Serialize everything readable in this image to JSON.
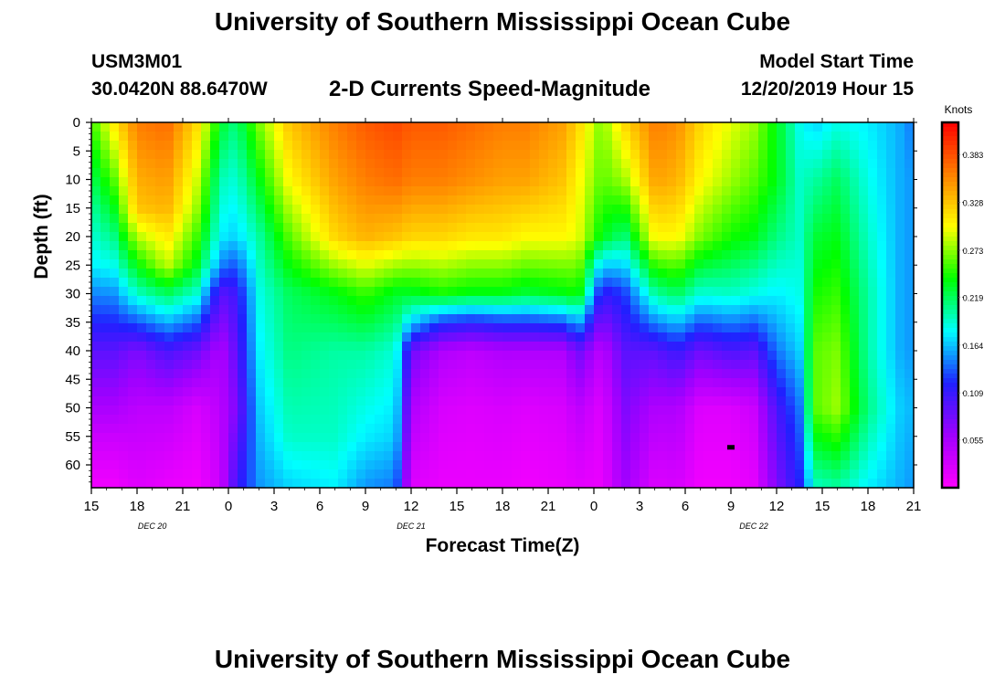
{
  "header": {
    "title": "University of Southern Mississippi Ocean Cube",
    "station": "USM3M01",
    "coordinates": "30.0420N 88.6470W",
    "subtitle": "2-D Currents Speed-Magnitude",
    "model_start_label": "Model Start Time",
    "model_start_value": "12/20/2019 Hour 15"
  },
  "footer": {
    "title": "University of Southern Mississippi Ocean Cube"
  },
  "chart_data": {
    "type": "heatmap",
    "title": "2-D Currents Speed-Magnitude",
    "xlabel": "Forecast Time(Z)",
    "ylabel": "Depth (ft)",
    "x_unit": "hours since 12/20/2019 15Z",
    "x_range": [
      0,
      54
    ],
    "x_tick_values": [
      0,
      3,
      6,
      9,
      12,
      15,
      18,
      21,
      24,
      27,
      30,
      33,
      36,
      39,
      42,
      45,
      48,
      51,
      54
    ],
    "x_tick_labels": [
      "15",
      "18",
      "21",
      "0",
      "3",
      "6",
      "9",
      "12",
      "15",
      "18",
      "21",
      "0",
      "3",
      "6",
      "9",
      "12",
      "15",
      "18",
      "21"
    ],
    "date_labels": [
      {
        "label": "DEC  20",
        "at_hour": 4
      },
      {
        "label": "DEC  21",
        "at_hour": 21
      },
      {
        "label": "DEC  22",
        "at_hour": 43.5
      }
    ],
    "y_range": [
      0,
      64
    ],
    "y_ticks": [
      0,
      5,
      10,
      15,
      20,
      25,
      30,
      35,
      40,
      45,
      50,
      55,
      60
    ],
    "colorbar": {
      "label": "Knots",
      "ticks": [
        0.055,
        0.109,
        0.164,
        0.219,
        0.273,
        0.328,
        0.383
      ],
      "range": [
        0.0,
        0.42
      ],
      "colors": [
        "#ff00ff",
        "#a000ff",
        "#2020ff",
        "#00ffff",
        "#00ff00",
        "#ffff00",
        "#ff8000",
        "#ff0000"
      ]
    },
    "value_scale": "0-1 fraction of colorbar range",
    "time_hours": [
      0,
      1.5,
      3,
      5,
      7,
      8.5,
      9.5,
      11,
      13,
      16,
      18,
      20,
      21,
      23,
      25,
      27,
      28.5,
      31,
      32,
      33.5,
      35,
      37,
      38.5,
      40,
      42,
      43.5,
      45,
      46.5,
      47.5,
      49,
      51,
      53,
      54
    ],
    "speed_profiles": [
      {
        "h": 0,
        "z": [
          0,
          15,
          25,
          30,
          40,
          55,
          64
        ],
        "v": [
          0.6,
          0.48,
          0.42,
          0.35,
          0.22,
          0.08,
          0.02
        ]
      },
      {
        "h": 1.5,
        "z": [
          0,
          15,
          25,
          30,
          40,
          55,
          64
        ],
        "v": [
          0.74,
          0.56,
          0.44,
          0.36,
          0.22,
          0.08,
          0.02
        ]
      },
      {
        "h": 3,
        "z": [
          0,
          15,
          30,
          40,
          50,
          64
        ],
        "v": [
          0.86,
          0.78,
          0.46,
          0.18,
          0.1,
          0.05
        ]
      },
      {
        "h": 5,
        "z": [
          0,
          15,
          25,
          30,
          40,
          50,
          64
        ],
        "v": [
          0.88,
          0.8,
          0.68,
          0.52,
          0.24,
          0.1,
          0.03
        ]
      },
      {
        "h": 7,
        "z": [
          0,
          15,
          25,
          30,
          40,
          50,
          64
        ],
        "v": [
          0.75,
          0.65,
          0.55,
          0.45,
          0.2,
          0.06,
          0.02
        ]
      },
      {
        "h": 8.5,
        "z": [
          0,
          10,
          20,
          25,
          30,
          40,
          64
        ],
        "v": [
          0.55,
          0.47,
          0.42,
          0.35,
          0.22,
          0.12,
          0.08
        ]
      },
      {
        "h": 9.5,
        "z": [
          0,
          10,
          20,
          25,
          30,
          50,
          64
        ],
        "v": [
          0.5,
          0.45,
          0.4,
          0.32,
          0.25,
          0.18,
          0.25
        ]
      },
      {
        "h": 11,
        "z": [
          0,
          10,
          20,
          30,
          40,
          55,
          64
        ],
        "v": [
          0.64,
          0.56,
          0.48,
          0.44,
          0.42,
          0.38,
          0.36
        ]
      },
      {
        "h": 13,
        "z": [
          0,
          10,
          20,
          30,
          40,
          55,
          64
        ],
        "v": [
          0.78,
          0.72,
          0.62,
          0.52,
          0.5,
          0.46,
          0.4
        ]
      },
      {
        "h": 16,
        "z": [
          0,
          10,
          20,
          30,
          40,
          55,
          64
        ],
        "v": [
          0.86,
          0.82,
          0.76,
          0.56,
          0.48,
          0.46,
          0.42
        ]
      },
      {
        "h": 18,
        "z": [
          0,
          10,
          20,
          30,
          40,
          55,
          64
        ],
        "v": [
          0.9,
          0.86,
          0.8,
          0.6,
          0.48,
          0.42,
          0.36
        ]
      },
      {
        "h": 20,
        "z": [
          0,
          10,
          20,
          30,
          40,
          55,
          64
        ],
        "v": [
          0.92,
          0.88,
          0.78,
          0.55,
          0.45,
          0.4,
          0.34
        ]
      },
      {
        "h": 21,
        "z": [
          0,
          10,
          20,
          30,
          35,
          40,
          50,
          64
        ],
        "v": [
          0.9,
          0.86,
          0.76,
          0.55,
          0.4,
          0.2,
          0.12,
          0.05
        ]
      },
      {
        "h": 23,
        "z": [
          0,
          10,
          20,
          30,
          35,
          40,
          50,
          64
        ],
        "v": [
          0.9,
          0.86,
          0.76,
          0.58,
          0.3,
          0.12,
          0.06,
          0.03
        ]
      },
      {
        "h": 25,
        "z": [
          0,
          10,
          20,
          30,
          35,
          40,
          50,
          64
        ],
        "v": [
          0.88,
          0.84,
          0.74,
          0.56,
          0.28,
          0.1,
          0.05,
          0.03
        ]
      },
      {
        "h": 27,
        "z": [
          0,
          10,
          20,
          30,
          35,
          40,
          50,
          64
        ],
        "v": [
          0.86,
          0.82,
          0.74,
          0.56,
          0.3,
          0.12,
          0.06,
          0.03
        ]
      },
      {
        "h": 28.5,
        "z": [
          0,
          10,
          20,
          30,
          35,
          40,
          50,
          64
        ],
        "v": [
          0.86,
          0.82,
          0.72,
          0.54,
          0.3,
          0.12,
          0.05,
          0.02
        ]
      },
      {
        "h": 31,
        "z": [
          0,
          10,
          20,
          30,
          35,
          40,
          50,
          64
        ],
        "v": [
          0.82,
          0.78,
          0.72,
          0.56,
          0.32,
          0.12,
          0.06,
          0.03
        ]
      },
      {
        "h": 32,
        "z": [
          0,
          10,
          20,
          30,
          35,
          40,
          50,
          64
        ],
        "v": [
          0.76,
          0.72,
          0.7,
          0.58,
          0.38,
          0.2,
          0.1,
          0.04
        ]
      },
      {
        "h": 33.5,
        "z": [
          0,
          10,
          20,
          25,
          30,
          40,
          50,
          64
        ],
        "v": [
          0.64,
          0.62,
          0.56,
          0.4,
          0.26,
          0.1,
          0.05,
          0.03
        ]
      },
      {
        "h": 35,
        "z": [
          0,
          10,
          20,
          30,
          40,
          50,
          64
        ],
        "v": [
          0.76,
          0.66,
          0.5,
          0.3,
          0.22,
          0.18,
          0.14
        ]
      },
      {
        "h": 37,
        "z": [
          0,
          10,
          20,
          30,
          40,
          50,
          64
        ],
        "v": [
          0.86,
          0.82,
          0.72,
          0.48,
          0.22,
          0.12,
          0.05
        ]
      },
      {
        "h": 38.5,
        "z": [
          0,
          10,
          20,
          30,
          40,
          50,
          64
        ],
        "v": [
          0.84,
          0.8,
          0.72,
          0.52,
          0.26,
          0.12,
          0.06
        ]
      },
      {
        "h": 40,
        "z": [
          0,
          10,
          20,
          30,
          40,
          50,
          64
        ],
        "v": [
          0.76,
          0.72,
          0.64,
          0.45,
          0.2,
          0.05,
          0.02
        ]
      },
      {
        "h": 42,
        "z": [
          0,
          10,
          20,
          30,
          40,
          50,
          64
        ],
        "v": [
          0.7,
          0.66,
          0.58,
          0.46,
          0.24,
          0.05,
          0.02
        ]
      },
      {
        "h": 43.5,
        "z": [
          0,
          10,
          20,
          30,
          40,
          50,
          64
        ],
        "v": [
          0.66,
          0.62,
          0.56,
          0.44,
          0.22,
          0.08,
          0.04
        ]
      },
      {
        "h": 45,
        "z": [
          0,
          10,
          20,
          30,
          40,
          50,
          64
        ],
        "v": [
          0.56,
          0.56,
          0.5,
          0.42,
          0.34,
          0.24,
          0.18
        ]
      },
      {
        "h": 46.5,
        "z": [
          0,
          10,
          20,
          30,
          40,
          50,
          64
        ],
        "v": [
          0.44,
          0.46,
          0.46,
          0.44,
          0.4,
          0.34,
          0.28
        ]
      },
      {
        "h": 47.5,
        "z": [
          0,
          10,
          20,
          30,
          40,
          50,
          64
        ],
        "v": [
          0.4,
          0.48,
          0.54,
          0.58,
          0.62,
          0.62,
          0.46
        ]
      },
      {
        "h": 49,
        "z": [
          0,
          10,
          20,
          30,
          40,
          50,
          64
        ],
        "v": [
          0.44,
          0.52,
          0.56,
          0.6,
          0.64,
          0.66,
          0.48
        ]
      },
      {
        "h": 51,
        "z": [
          0,
          10,
          20,
          30,
          40,
          50,
          64
        ],
        "v": [
          0.42,
          0.44,
          0.46,
          0.48,
          0.48,
          0.5,
          0.42
        ]
      },
      {
        "h": 53,
        "z": [
          0,
          10,
          20,
          30,
          40,
          50,
          64
        ],
        "v": [
          0.38,
          0.38,
          0.38,
          0.38,
          0.38,
          0.4,
          0.38
        ]
      },
      {
        "h": 54,
        "z": [
          0,
          10,
          20,
          30,
          40,
          50,
          64
        ],
        "v": [
          0.34,
          0.36,
          0.36,
          0.36,
          0.36,
          0.38,
          0.36
        ]
      }
    ],
    "marker": {
      "hour": 42,
      "depth": 57
    }
  }
}
